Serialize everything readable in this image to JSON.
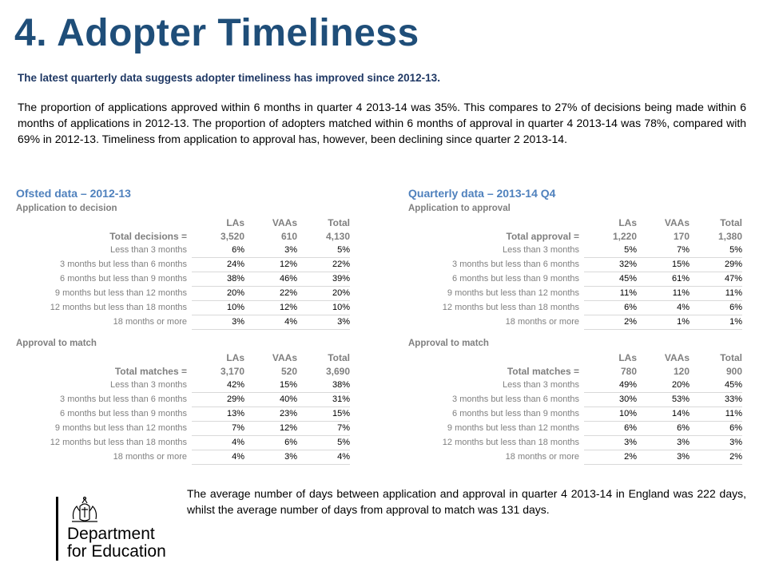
{
  "title": "4. Adopter Timeliness",
  "subtitle": "The latest quarterly data suggests adopter timeliness has improved since 2012-13.",
  "paragraph": "The proportion of applications approved within 6 months in quarter 4 2013-14 was 35%. This compares to 27% of decisions being made within 6 months of applications in 2012-13. The proportion of adopters matched within 6 months of approval in quarter 4 2013-14 was 78%, compared with 69% in 2012-13. Timeliness from application to approval has, however, been declining since quarter 2 2013-14.",
  "left": {
    "heading": "Ofsted data – 2012-13",
    "tables": [
      {
        "subheading": "Application to decision",
        "columns": [
          "LAs",
          "VAAs",
          "Total"
        ],
        "total_label": "Total decisions =",
        "totals": [
          "3,520",
          "610",
          "4,130"
        ],
        "rows": [
          {
            "label": "Less than 3 months",
            "values": [
              "6%",
              "3%",
              "5%"
            ]
          },
          {
            "label": "3 months but less than 6 months",
            "values": [
              "24%",
              "12%",
              "22%"
            ]
          },
          {
            "label": "6 months but less than 9 months",
            "values": [
              "38%",
              "46%",
              "39%"
            ]
          },
          {
            "label": "9 months but less than 12 months",
            "values": [
              "20%",
              "22%",
              "20%"
            ]
          },
          {
            "label": "12 months but less than 18 months",
            "values": [
              "10%",
              "12%",
              "10%"
            ]
          },
          {
            "label": "18 months or more",
            "values": [
              "3%",
              "4%",
              "3%"
            ]
          }
        ]
      },
      {
        "subheading": "Approval to match",
        "columns": [
          "LAs",
          "VAAs",
          "Total"
        ],
        "total_label": "Total matches =",
        "totals": [
          "3,170",
          "520",
          "3,690"
        ],
        "rows": [
          {
            "label": "Less than 3 months",
            "values": [
              "42%",
              "15%",
              "38%"
            ]
          },
          {
            "label": "3 months  but less than 6 months",
            "values": [
              "29%",
              "40%",
              "31%"
            ]
          },
          {
            "label": "6 months but less than 9 months",
            "values": [
              "13%",
              "23%",
              "15%"
            ]
          },
          {
            "label": "9 months but less than 12 months",
            "values": [
              "7%",
              "12%",
              "7%"
            ]
          },
          {
            "label": "12 months but less than 18 months",
            "values": [
              "4%",
              "6%",
              "5%"
            ]
          },
          {
            "label": "18 months or more",
            "values": [
              "4%",
              "3%",
              "4%"
            ]
          }
        ]
      }
    ]
  },
  "right": {
    "heading": "Quarterly data – 2013-14 Q4",
    "tables": [
      {
        "subheading": "Application to approval",
        "columns": [
          "LAs",
          "VAAs",
          "Total"
        ],
        "total_label": "Total approval =",
        "totals": [
          "1,220",
          "170",
          "1,380"
        ],
        "rows": [
          {
            "label": "Less than 3 months",
            "values": [
              "5%",
              "7%",
              "5%"
            ]
          },
          {
            "label": "3 months but less than 6 months",
            "values": [
              "32%",
              "15%",
              "29%"
            ]
          },
          {
            "label": "6 months but less than 9 months",
            "values": [
              "45%",
              "61%",
              "47%"
            ]
          },
          {
            "label": "9 months but less than 12 months",
            "values": [
              "11%",
              "11%",
              "11%"
            ]
          },
          {
            "label": "12 months but less than 18 months",
            "values": [
              "6%",
              "4%",
              "6%"
            ]
          },
          {
            "label": "18 months or more",
            "values": [
              "2%",
              "1%",
              "1%"
            ]
          }
        ]
      },
      {
        "subheading": "Approval to match",
        "columns": [
          "LAs",
          "VAAs",
          "Total"
        ],
        "total_label": "Total matches =",
        "totals": [
          "780",
          "120",
          "900"
        ],
        "rows": [
          {
            "label": "Less than 3 months",
            "values": [
              "49%",
              "20%",
              "45%"
            ]
          },
          {
            "label": "3 months  but less than 6 months",
            "values": [
              "30%",
              "53%",
              "33%"
            ]
          },
          {
            "label": "6 months but less than 9 months",
            "values": [
              "10%",
              "14%",
              "11%"
            ]
          },
          {
            "label": "9 months but less than 12 months",
            "values": [
              "6%",
              "6%",
              "6%"
            ]
          },
          {
            "label": "12 months but less than 18 months",
            "values": [
              "3%",
              "3%",
              "3%"
            ]
          },
          {
            "label": "18 months or more",
            "values": [
              "2%",
              "3%",
              "2%"
            ]
          }
        ]
      }
    ]
  },
  "footer": "The average number of days between application and approval in quarter 4 2013-14 in England was 222 days, whilst the average number of days from approval to match was 131 days.",
  "logo": {
    "line1": "Department",
    "line2": "for Education",
    "icon": "royal-crest-icon"
  },
  "colors": {
    "title": "#1f4e79",
    "section_heading": "#4f81bd",
    "label_grey": "#808080"
  }
}
